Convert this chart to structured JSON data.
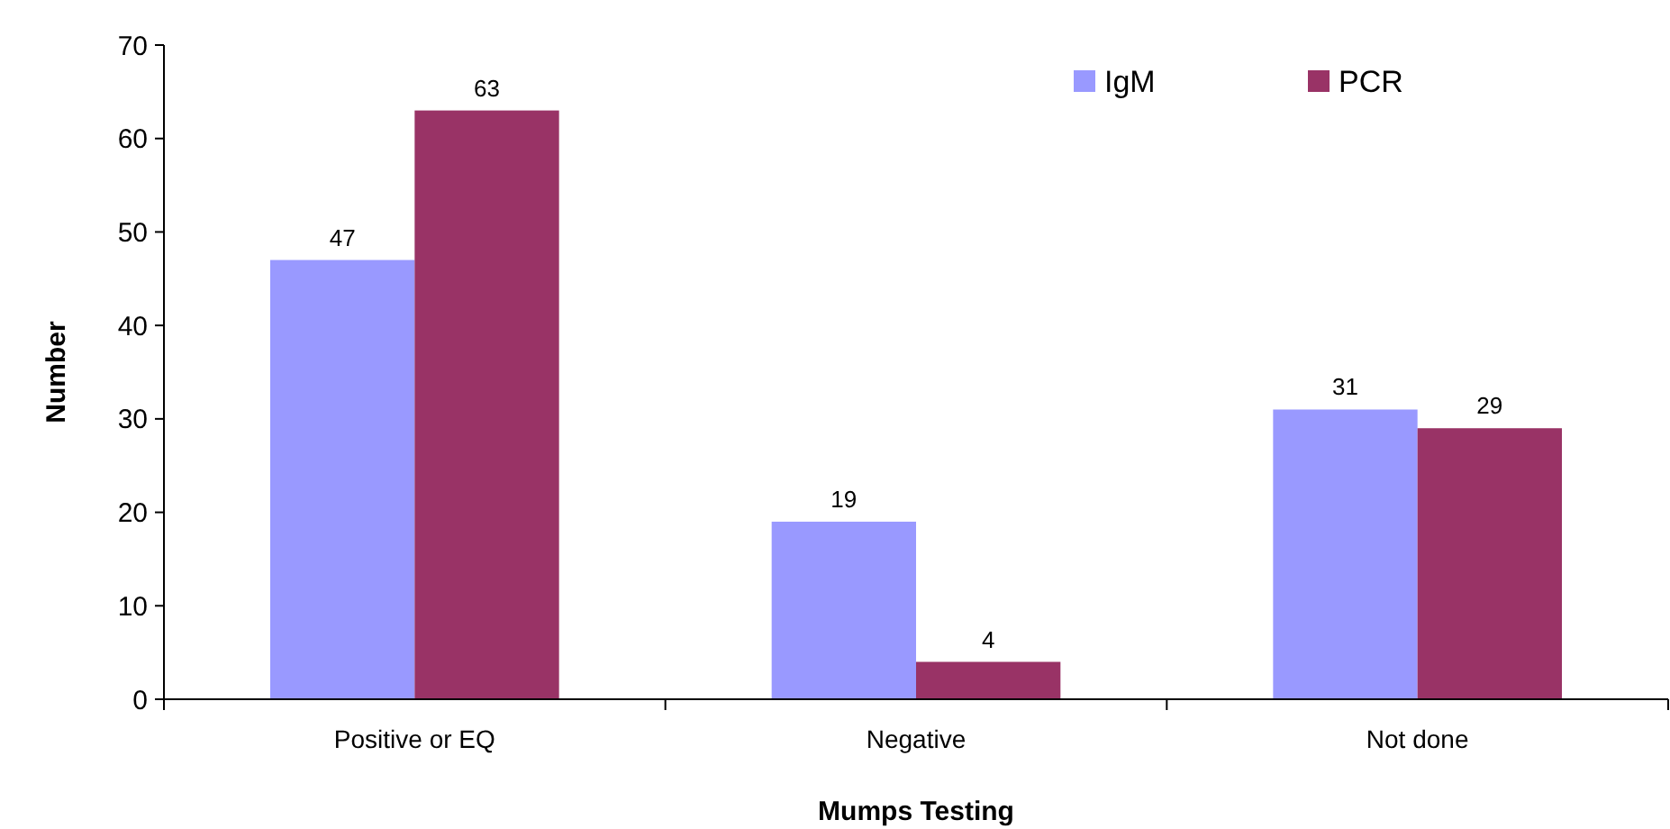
{
  "chart_data": {
    "type": "bar",
    "xlabel": "Mumps Testing",
    "ylabel": "Number",
    "categories": [
      "Positive or EQ",
      "Negative",
      "Not done"
    ],
    "series": [
      {
        "name": "IgM",
        "color": "#9999ff",
        "values": [
          47,
          19,
          31
        ]
      },
      {
        "name": "PCR",
        "color": "#993366",
        "values": [
          63,
          4,
          29
        ]
      }
    ],
    "ylim": [
      0,
      70
    ],
    "yticks": [
      0,
      10,
      20,
      30,
      40,
      50,
      60,
      70
    ],
    "grid": false,
    "legend": "top right",
    "data_labels": true
  }
}
